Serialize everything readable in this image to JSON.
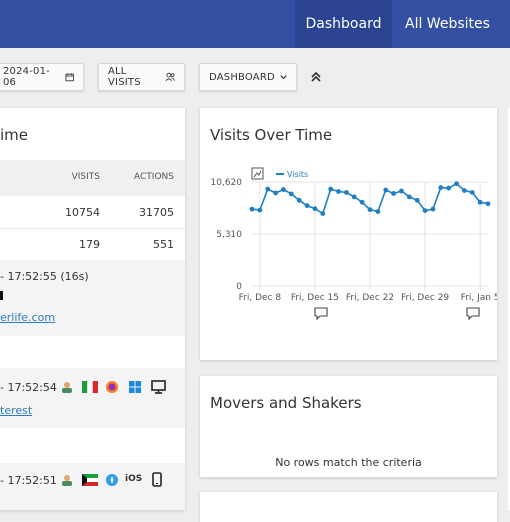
{
  "nav": {
    "dashboard": "Dashboard",
    "all_websites": "All Websites"
  },
  "controls": {
    "date": "2024-01-06",
    "segment": "ALL VISITS",
    "dashboard": "DASHBOARD"
  },
  "left_widget": {
    "title_fragment": "ime",
    "columns": [
      "VISITS",
      "ACTIONS"
    ],
    "rows": [
      {
        "visits": "10754",
        "actions": "31705"
      },
      {
        "visits": "179",
        "actions": "551"
      }
    ],
    "visitors": [
      {
        "time": "- 17:52:55 (16s)",
        "referrer": "erlife.com"
      },
      {
        "time": "- 17:52:54",
        "referrer": "terest"
      },
      {
        "time": "- 17:52:51",
        "os_label": "iOS"
      }
    ]
  },
  "visits_over_time": {
    "title": "Visits Over Time",
    "legend": "Visits",
    "colors": {
      "line": "#1f7fc4",
      "grid": "#e3e3e3"
    }
  },
  "chart_data": {
    "type": "line",
    "title": "Visits Over Time",
    "x": [
      "2023-12-07",
      "2023-12-08",
      "2023-12-09",
      "2023-12-10",
      "2023-12-11",
      "2023-12-12",
      "2023-12-13",
      "2023-12-14",
      "2023-12-15",
      "2023-12-16",
      "2023-12-17",
      "2023-12-18",
      "2023-12-19",
      "2023-12-20",
      "2023-12-21",
      "2023-12-22",
      "2023-12-23",
      "2023-12-24",
      "2023-12-25",
      "2023-12-26",
      "2023-12-27",
      "2023-12-28",
      "2023-12-29",
      "2023-12-30",
      "2023-12-31",
      "2024-01-01",
      "2024-01-02",
      "2024-01-03",
      "2024-01-04",
      "2024-01-05",
      "2024-01-06"
    ],
    "x_tick_labels": [
      "Fri, Dec 8",
      "Fri, Dec 15",
      "Fri, Dec 22",
      "Fri, Dec 29",
      "Fri, Jan 5"
    ],
    "series": [
      {
        "name": "Visits",
        "values": [
          7850,
          7750,
          9900,
          9500,
          9850,
          9400,
          8750,
          8200,
          7900,
          7400,
          9900,
          9650,
          9550,
          9100,
          8550,
          7800,
          7600,
          9800,
          9450,
          9700,
          9100,
          8750,
          7700,
          7850,
          10050,
          10000,
          10450,
          9750,
          9550,
          8550,
          8400
        ]
      }
    ],
    "yticks": [
      "0",
      "5,310",
      "10,620"
    ],
    "ylim": [
      0,
      10620
    ],
    "grid": true,
    "legend_position": "top-left"
  },
  "movers": {
    "title": "Movers and Shakers",
    "empty_text": "No rows match the criteria"
  }
}
